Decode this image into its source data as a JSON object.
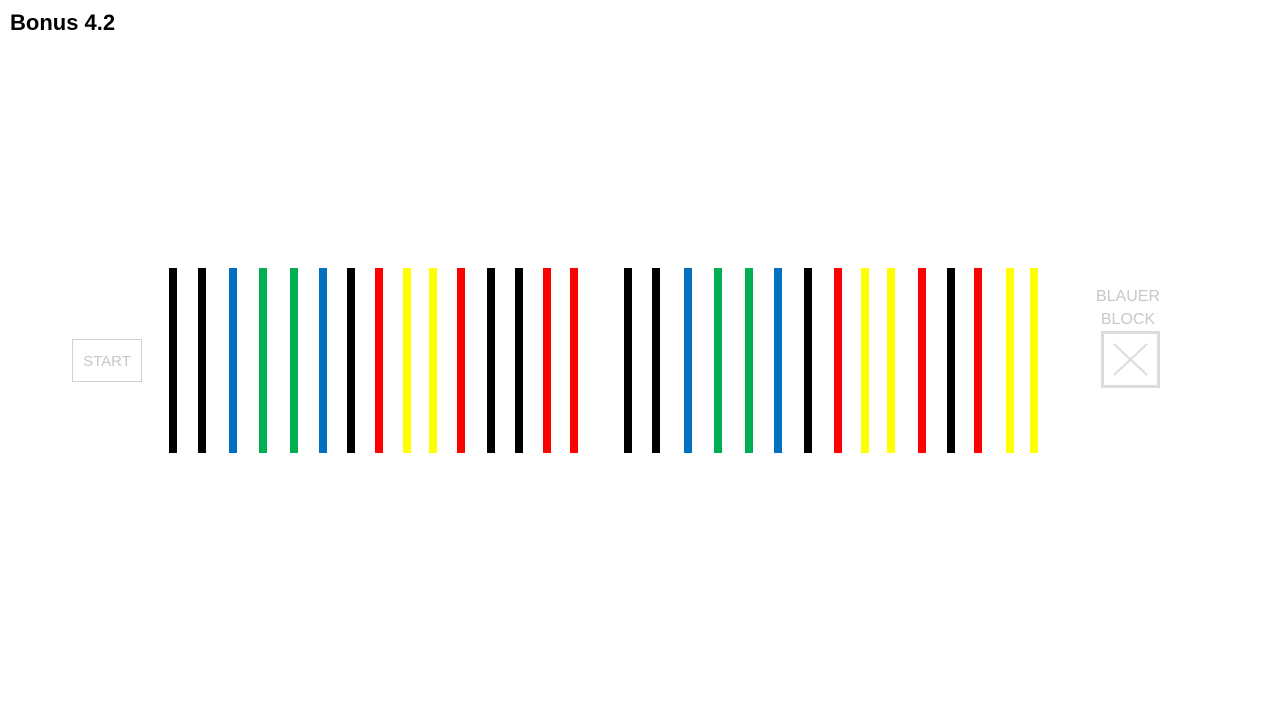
{
  "title": "Bonus 4.2",
  "start": "START",
  "target": {
    "line1": "BLAUER",
    "line2": "BLOCK"
  }
}
